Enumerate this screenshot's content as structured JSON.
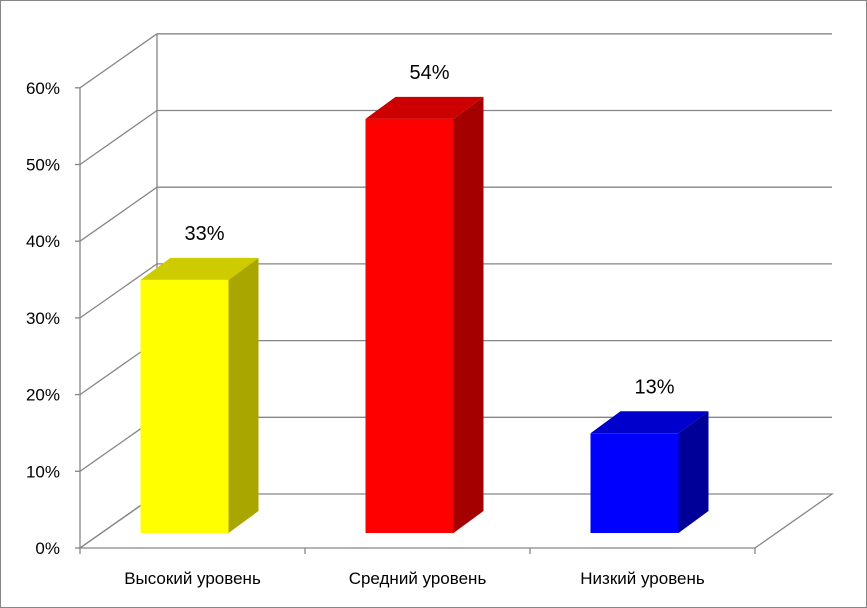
{
  "chart_data": {
    "type": "bar",
    "categories": [
      "Высокий уровень",
      "Средний уровень",
      "Низкий уровень"
    ],
    "values": [
      33,
      54,
      13
    ],
    "data_labels": [
      "33%",
      "54%",
      "13%"
    ],
    "ylim": [
      0,
      60
    ],
    "yticks": [
      "0%",
      "10%",
      "20%",
      "30%",
      "40%",
      "50%",
      "60%"
    ],
    "colors": {
      "front": [
        "#ffff00",
        "#ff0000",
        "#0000ff"
      ],
      "side": [
        "#aaa600",
        "#a50000",
        "#000099"
      ],
      "top": [
        "#cccc00",
        "#cc0000",
        "#0000cc"
      ]
    },
    "grid": true,
    "legend": "none",
    "style": "3d-column"
  }
}
